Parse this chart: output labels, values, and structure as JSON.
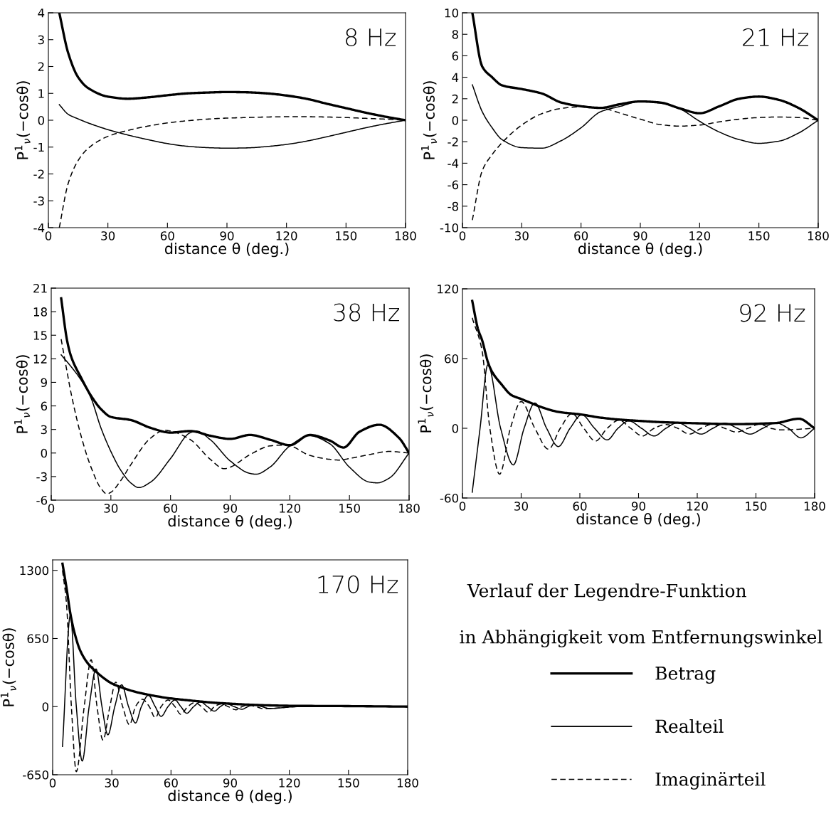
{
  "chart_data": [
    {
      "type": "line",
      "annotations": [
        "8 Hz"
      ],
      "xlabel": "distance θ (deg.)",
      "ylabel": "P$^{1}$$_{ν}$(−cosθ)",
      "xlim": [
        0,
        180
      ],
      "xticks": [
        0,
        30,
        60,
        90,
        120,
        150,
        180
      ],
      "ylim": [
        -4,
        4
      ],
      "yticks": [
        -4,
        -3,
        -2,
        -1,
        0,
        1,
        2,
        3,
        4
      ],
      "x": [
        5.5,
        10,
        15,
        20,
        30,
        40,
        50,
        60,
        70,
        80,
        90,
        100,
        110,
        120,
        130,
        140,
        150,
        160,
        170,
        180
      ],
      "series": [
        {
          "color": "#000000",
          "line_style": "solid",
          "values": [
            4.0,
            2.5,
            1.6,
            1.2,
            0.88,
            0.8,
            0.85,
            0.93,
            1.0,
            1.03,
            1.05,
            1.04,
            1.0,
            0.92,
            0.8,
            0.62,
            0.45,
            0.28,
            0.13,
            0
          ]
        },
        {
          "color": "#000000",
          "line_style": "solid",
          "values": [
            0.58,
            0.22,
            0.05,
            -0.1,
            -0.35,
            -0.55,
            -0.72,
            -0.87,
            -0.97,
            -1.02,
            -1.04,
            -1.03,
            -0.98,
            -0.9,
            -0.78,
            -0.62,
            -0.45,
            -0.28,
            -0.13,
            0
          ]
        },
        {
          "color": "#000000",
          "line_style": "dashed",
          "values": [
            -4.0,
            -2.35,
            -1.5,
            -1.05,
            -0.6,
            -0.38,
            -0.22,
            -0.1,
            -0.02,
            0.04,
            0.08,
            0.1,
            0.12,
            0.13,
            0.13,
            0.12,
            0.1,
            0.07,
            0.04,
            0
          ]
        }
      ]
    },
    {
      "type": "line",
      "annotations": [
        "21 Hz"
      ],
      "xlabel": "distance θ (deg.)",
      "ylabel": "P$^{1}$$_{ν}$(−cosθ)",
      "xlim": [
        0,
        180
      ],
      "xticks": [
        0,
        30,
        60,
        90,
        120,
        150,
        180
      ],
      "ylim": [
        -10,
        10
      ],
      "yticks": [
        -10,
        -8,
        -6,
        -4,
        -2,
        0,
        2,
        4,
        6,
        8,
        10
      ],
      "x": [
        5,
        10,
        15,
        20,
        30,
        40,
        50,
        60,
        70,
        80,
        90,
        100,
        110,
        120,
        130,
        140,
        150,
        160,
        170,
        180
      ],
      "series": [
        {
          "color": "#000000",
          "line_style": "solid",
          "values": [
            10,
            5.0,
            4.0,
            3.25,
            2.9,
            2.5,
            1.65,
            1.3,
            1.15,
            1.5,
            1.75,
            1.65,
            1.1,
            0.65,
            1.3,
            2.0,
            2.2,
            1.9,
            1.15,
            0
          ]
        },
        {
          "color": "#000000",
          "line_style": "solid",
          "values": [
            3.3,
            0.8,
            -0.7,
            -1.8,
            -2.55,
            -2.6,
            -1.9,
            -0.7,
            0.8,
            1.3,
            1.75,
            1.6,
            1.05,
            -0.1,
            -1.1,
            -1.8,
            -2.15,
            -1.95,
            -1.2,
            0
          ]
        },
        {
          "color": "#000000",
          "line_style": "dashed",
          "values": [
            -9.3,
            -4.7,
            -3.2,
            -2.1,
            -0.45,
            0.6,
            1.1,
            1.25,
            1.15,
            0.65,
            0.1,
            -0.4,
            -0.55,
            -0.45,
            -0.15,
            0.1,
            0.25,
            0.3,
            0.25,
            0
          ]
        }
      ]
    },
    {
      "type": "line",
      "annotations": [
        "38 Hz"
      ],
      "xlabel": "distance θ (deg.)",
      "ylabel": "P$^{1}$$_{ν}$(−cosθ)",
      "xlim": [
        0,
        180
      ],
      "xticks": [
        0,
        30,
        60,
        90,
        120,
        150,
        180
      ],
      "ylim": [
        -6,
        21
      ],
      "yticks": [
        -6,
        -3,
        0,
        3,
        6,
        9,
        12,
        15,
        18,
        21
      ],
      "series": [
        {
          "color": "#000000",
          "line_style": "solid",
          "x": [
            5,
            8,
            10,
            15,
            20,
            25,
            30,
            40,
            50,
            60,
            70,
            80,
            90,
            100,
            110,
            120,
            130,
            140,
            147,
            155,
            165,
            175,
            180
          ],
          "values": [
            19.7,
            14.3,
            12.3,
            9.6,
            7.3,
            5.6,
            4.6,
            4.2,
            3.2,
            2.6,
            2.8,
            2.2,
            1.8,
            2.3,
            1.7,
            1.0,
            2.3,
            1.6,
            0.7,
            2.7,
            3.6,
            1.9,
            0
          ]
        },
        {
          "color": "#000000",
          "line_style": "solid",
          "x": [
            5,
            10,
            15,
            20,
            25,
            30,
            35,
            40,
            44,
            50,
            60,
            70,
            73,
            80,
            90,
            100,
            103,
            110,
            120,
            130,
            140,
            150,
            160,
            164,
            170,
            180
          ],
          "values": [
            12.5,
            11.0,
            9.3,
            7.0,
            3.2,
            0.2,
            -2.2,
            -3.8,
            -4.4,
            -3.7,
            -0.7,
            2.6,
            2.8,
            1.7,
            -1.0,
            -2.6,
            -2.7,
            -1.8,
            0.9,
            2.2,
            1.2,
            -1.8,
            -3.7,
            -3.8,
            -3.2,
            0
          ]
        },
        {
          "color": "#000000",
          "line_style": "dashed",
          "x": [
            5,
            8,
            10,
            15,
            20,
            25,
            28,
            30,
            35,
            40,
            50,
            57,
            60,
            70,
            80,
            87,
            90,
            100,
            110,
            115,
            120,
            130,
            140,
            145,
            150,
            160,
            170,
            180
          ],
          "values": [
            14.5,
            10.3,
            7.6,
            2.2,
            -1.8,
            -4.5,
            -5.2,
            -5.0,
            -3.5,
            -1.5,
            1.9,
            2.9,
            2.8,
            1.7,
            -0.8,
            -2.0,
            -1.8,
            -0.2,
            0.9,
            1.0,
            0.9,
            -0.3,
            -0.8,
            -0.9,
            -0.7,
            -0.2,
            0.2,
            0
          ]
        }
      ]
    },
    {
      "type": "line",
      "annotations": [
        "92 Hz"
      ],
      "xlabel": "distance θ (deg.)",
      "ylabel": "P$^{1}$$_{ν}$(−cosθ)",
      "xlim": [
        0,
        180
      ],
      "xticks": [
        0,
        30,
        60,
        90,
        120,
        150,
        180
      ],
      "ylim": [
        -60,
        120
      ],
      "yticks": [
        -60,
        0,
        60,
        120
      ],
      "series": [
        {
          "color": "#000000",
          "line_style": "solid",
          "x": [
            5,
            8,
            10,
            13,
            15,
            20,
            25,
            30,
            35,
            40,
            50,
            60,
            70,
            80,
            90,
            100,
            120,
            140,
            160,
            172,
            180
          ],
          "values": [
            109.6,
            85,
            76,
            57,
            49,
            37.7,
            28.6,
            25.2,
            21.8,
            18.4,
            13.8,
            12.0,
            9.3,
            7.5,
            6.4,
            5.4,
            4.3,
            3.6,
            4.5,
            8.2,
            0
          ]
        },
        {
          "color": "#000000",
          "line_style": "solid",
          "x": [
            5,
            9,
            13,
            19.5,
            26,
            31.5,
            37,
            43,
            49,
            55,
            61,
            67.5,
            74,
            79.5,
            85,
            91.5,
            98,
            104,
            110,
            116,
            122,
            128,
            134,
            140.5,
            147,
            153.5,
            160,
            166.5,
            173,
            180
          ],
          "values": [
            -55,
            0,
            54.7,
            0,
            -31.5,
            0,
            21.8,
            0,
            -15.7,
            0,
            11.6,
            0,
            -10,
            0,
            6.4,
            0,
            -6.6,
            0,
            4.8,
            0,
            -5,
            0,
            4.3,
            0,
            -5,
            0,
            4.8,
            0,
            -8.2,
            0
          ]
        },
        {
          "color": "#000000",
          "line_style": "dashed",
          "x": [
            5,
            10,
            14,
            19,
            24.5,
            30,
            37,
            44,
            50,
            56,
            62,
            68,
            74,
            80,
            86,
            92,
            98,
            104,
            110,
            116,
            122,
            128,
            134,
            140,
            146,
            152,
            157.5,
            163,
            180
          ],
          "values": [
            95,
            67,
            0,
            -39.5,
            0,
            23,
            0,
            -18,
            0,
            12.7,
            0,
            -11,
            0,
            7,
            0,
            -6.6,
            0,
            3.2,
            0,
            -5,
            0,
            3.6,
            0,
            -3.2,
            0,
            3.6,
            0,
            -1.4,
            0
          ]
        }
      ]
    },
    {
      "type": "line",
      "annotations": [
        "170 Hz"
      ],
      "xlabel": "distance θ (deg.)",
      "ylabel": "P$^{1}$$_{ν}$(−cosθ)",
      "xlim": [
        0,
        180
      ],
      "xticks": [
        0,
        30,
        60,
        90,
        120,
        150,
        180
      ],
      "ylim": [
        -650,
        1400
      ],
      "yticks": [
        -650,
        0,
        650,
        1300
      ],
      "legend": "right",
      "series": [
        {
          "name": "Betrag",
          "color": "#000000",
          "line_style": "solid",
          "x": [
            5,
            7,
            9,
            11,
            14,
            18,
            22,
            26,
            30,
            35,
            40,
            50,
            60,
            70,
            80,
            90,
            100,
            120,
            150,
            180
          ],
          "values": [
            1363,
            1137,
            886,
            710,
            534,
            409,
            334,
            271,
            221,
            183,
            151,
            108,
            78,
            58,
            40,
            28,
            18,
            8,
            5,
            0
          ]
        },
        {
          "name": "Realteil",
          "color": "#000000",
          "line_style": "solid",
          "x": [
            5,
            9,
            12,
            15,
            18.5,
            22,
            25,
            28,
            31.5,
            35,
            38.5,
            42,
            45,
            48.5,
            52,
            55,
            58.5,
            62,
            65,
            68,
            71.5,
            75,
            78.5,
            82,
            85,
            88,
            92,
            96,
            99,
            102,
            106,
            110,
            125,
            150,
            180
          ],
          "values": [
            -380,
            873,
            0,
            -519,
            0,
            359,
            0,
            -269,
            0,
            208,
            0,
            -156,
            0,
            108,
            0,
            -93,
            0,
            63,
            0,
            -63,
            0,
            45,
            0,
            -43,
            0,
            28,
            0,
            -25,
            0,
            18,
            0,
            -18,
            0,
            0,
            0
          ]
        },
        {
          "name": "Imaginärteil",
          "color": "#000000",
          "line_style": "dashed",
          "x": [
            5,
            7,
            9.5,
            12,
            16,
            19.5,
            22.5,
            25.5,
            29,
            32,
            35.5,
            39,
            42,
            45.5,
            49,
            52,
            55,
            58.5,
            62,
            65,
            68.5,
            72,
            75.5,
            79,
            82,
            85.5,
            89,
            93,
            96,
            99,
            103,
            107,
            125,
            150,
            180
          ],
          "values": [
            1300,
            986,
            0,
            -620,
            0,
            447,
            0,
            -319,
            0,
            233,
            0,
            -173,
            0,
            70,
            0,
            -105,
            0,
            63,
            0,
            -73,
            0,
            38,
            0,
            -55,
            0,
            25,
            0,
            -30,
            0,
            15,
            0,
            -20,
            0,
            0,
            0
          ]
        }
      ]
    },
    {
      "type": "other",
      "annotations": [
        "Verlauf der Legendre-Funktion",
        "in Abhängigkeit vom Entfernungswinkel"
      ]
    }
  ]
}
